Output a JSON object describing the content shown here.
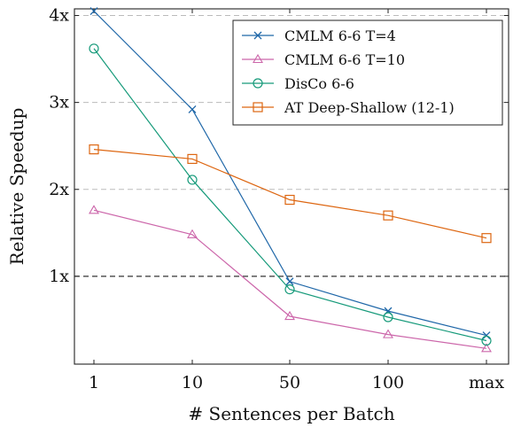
{
  "chart_data": {
    "type": "line",
    "xlabel": "# Sentences per Batch",
    "ylabel": "Relative Speedup",
    "categories": [
      "1",
      "10",
      "50",
      "100",
      "max"
    ],
    "ylim": [
      0.0,
      4.0
    ],
    "yticks": [
      {
        "value": 1,
        "label": "1x"
      },
      {
        "value": 2,
        "label": "2x"
      },
      {
        "value": 3,
        "label": "3x"
      },
      {
        "value": 4,
        "label": "4x"
      }
    ],
    "reference_line": 1,
    "grid": "horizontal dashed",
    "legend_position": "top-right",
    "series": [
      {
        "name": "CMLM 6-6 T=4",
        "color": "#1f67a8",
        "marker": "x",
        "values": [
          4.05,
          2.92,
          0.94,
          0.6,
          0.32
        ]
      },
      {
        "name": "CMLM 6-6 T=10",
        "color": "#cc66aa",
        "marker": "triangle",
        "values": [
          1.76,
          1.48,
          0.54,
          0.33,
          0.17
        ]
      },
      {
        "name": "DisCo 6-6",
        "color": "#169a7a",
        "marker": "circle",
        "values": [
          3.62,
          2.11,
          0.85,
          0.53,
          0.26
        ]
      },
      {
        "name": "AT Deep-Shallow (12-1)",
        "color": "#dd6611",
        "marker": "square",
        "values": [
          2.46,
          2.35,
          1.88,
          1.7,
          1.44
        ]
      }
    ]
  }
}
